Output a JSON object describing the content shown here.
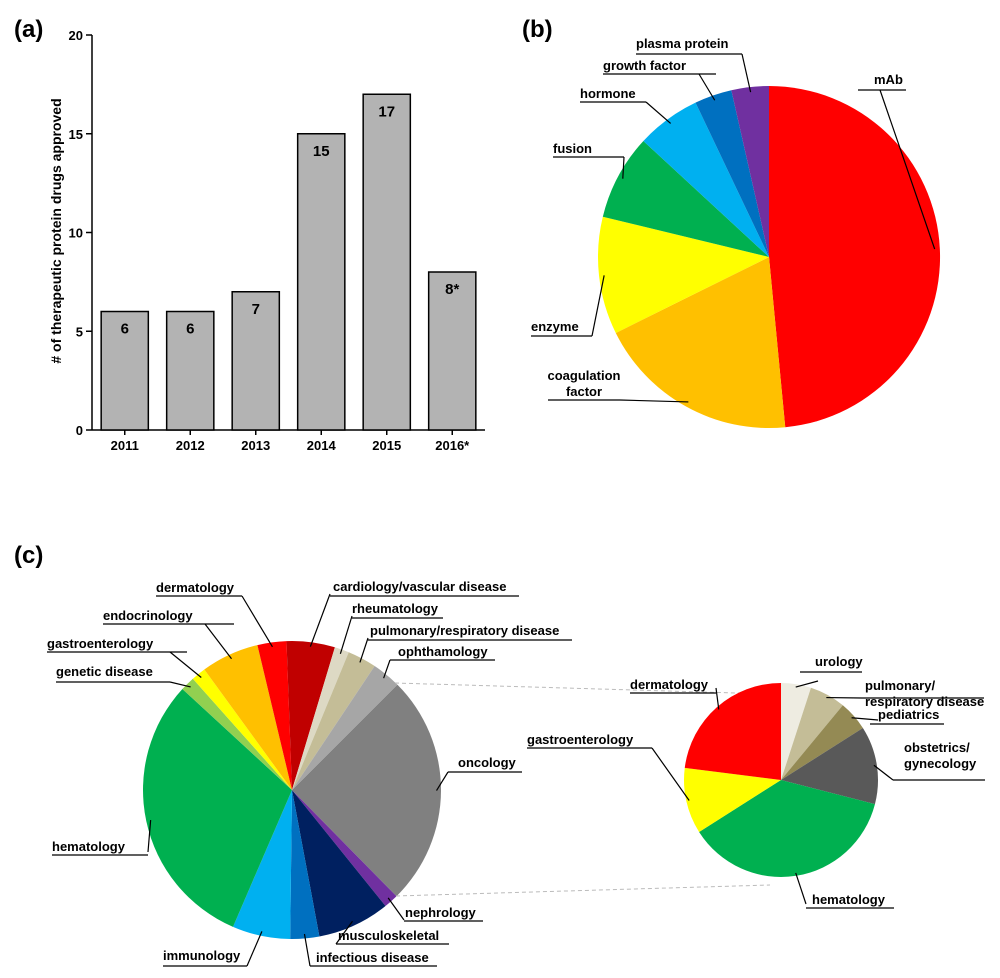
{
  "panels": {
    "a": "(a)",
    "b": "(b)",
    "c": "(c)"
  },
  "chart_data": [
    {
      "type": "bar",
      "panel": "(a)",
      "categories": [
        "2011",
        "2012",
        "2013",
        "2014",
        "2015",
        "2016*"
      ],
      "values": [
        6,
        6,
        7,
        15,
        17,
        8
      ],
      "data_labels": [
        "6",
        "6",
        "7",
        "15",
        "17",
        "8*"
      ],
      "ylabel": "# of therapeutic protein drugs approved",
      "ylim": [
        0,
        20
      ],
      "yticks": [
        0,
        5,
        10,
        15,
        20
      ],
      "bar_color": "#b3b3b3"
    },
    {
      "type": "pie",
      "panel": "(b)",
      "slices": [
        {
          "label": "mAb",
          "value": 48,
          "color": "#ff0000"
        },
        {
          "label": "coagulation factor",
          "label_lines": [
            "coagulation",
            "factor"
          ],
          "value": 19,
          "color": "#ffc000"
        },
        {
          "label": "enzyme",
          "value": 11,
          "color": "#ffff00"
        },
        {
          "label": "fusion",
          "value": 8,
          "color": "#00b050"
        },
        {
          "label": "hormone",
          "value": 6,
          "color": "#00b0f0"
        },
        {
          "label": "growth factor",
          "value": 3.5,
          "color": "#0070c0"
        },
        {
          "label": "plasma protein",
          "value": 3.5,
          "color": "#7030a0"
        }
      ]
    },
    {
      "type": "pie",
      "panel": "(c)",
      "slices": [
        {
          "label": "oncology",
          "value": 24,
          "color": "#808080"
        },
        {
          "label": "nephrology",
          "value": 1.5,
          "color": "#7030a0"
        },
        {
          "label": "musculoskeletal",
          "value": 7.5,
          "color": "#002060"
        },
        {
          "label": "infectious disease",
          "value": 3,
          "color": "#0070c0"
        },
        {
          "label": "immunology",
          "value": 6,
          "color": "#00b0f0"
        },
        {
          "label": "hematology",
          "value": 29,
          "color": "#00b050"
        },
        {
          "label": "genetic disease",
          "value": 1.5,
          "color": "#92d050"
        },
        {
          "label": "gastroenterology",
          "value": 1.5,
          "color": "#ffff00"
        },
        {
          "label": "endocrinology",
          "value": 6,
          "color": "#ffc000"
        },
        {
          "label": "dermatology",
          "value": 3,
          "color": "#ff0000"
        },
        {
          "label": "cardiology/vascular disease",
          "value": 5,
          "color": "#c00000"
        },
        {
          "label": "rheumatology",
          "value": 1.5,
          "color": "#ddd9c4"
        },
        {
          "label": "pulmonary/respiratory disease",
          "value": 3,
          "color": "#c4bd97"
        },
        {
          "label": "ophthamology",
          "value": 3,
          "color": "#a6a6a6"
        }
      ]
    },
    {
      "type": "pie",
      "panel": "(c) inset",
      "slices": [
        {
          "label": "urology",
          "value": 5,
          "color": "#eeece1"
        },
        {
          "label": "pulmonary/ respiratory disease",
          "label_lines": [
            "pulmonary/",
            "respiratory disease"
          ],
          "value": 6,
          "color": "#c4bd97"
        },
        {
          "label": "pediatrics",
          "value": 5,
          "color": "#948a54"
        },
        {
          "label": "obstetrics/ gynecology",
          "label_lines": [
            "obstetrics/",
            "gynecology"
          ],
          "value": 13,
          "color": "#595959"
        },
        {
          "label": "hematology",
          "value": 37,
          "color": "#00b050"
        },
        {
          "label": "gastroenterology",
          "value": 11,
          "color": "#ffff00"
        },
        {
          "label": "dermatology",
          "value": 23,
          "color": "#ff0000"
        }
      ]
    }
  ]
}
